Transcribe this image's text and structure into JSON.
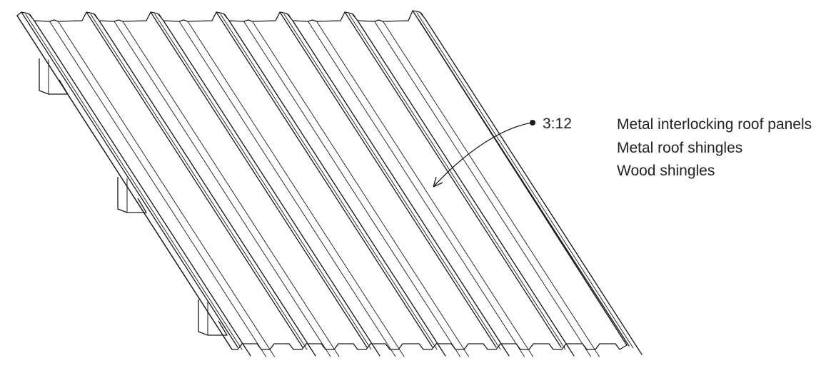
{
  "callout": {
    "pitch": "3:12",
    "materials": [
      "Metal interlocking roof panels",
      "Metal roof shingles",
      "Wood shingles"
    ]
  },
  "colors": {
    "line": "#1a1a1a",
    "text": "#222222",
    "background": "#ffffff"
  }
}
